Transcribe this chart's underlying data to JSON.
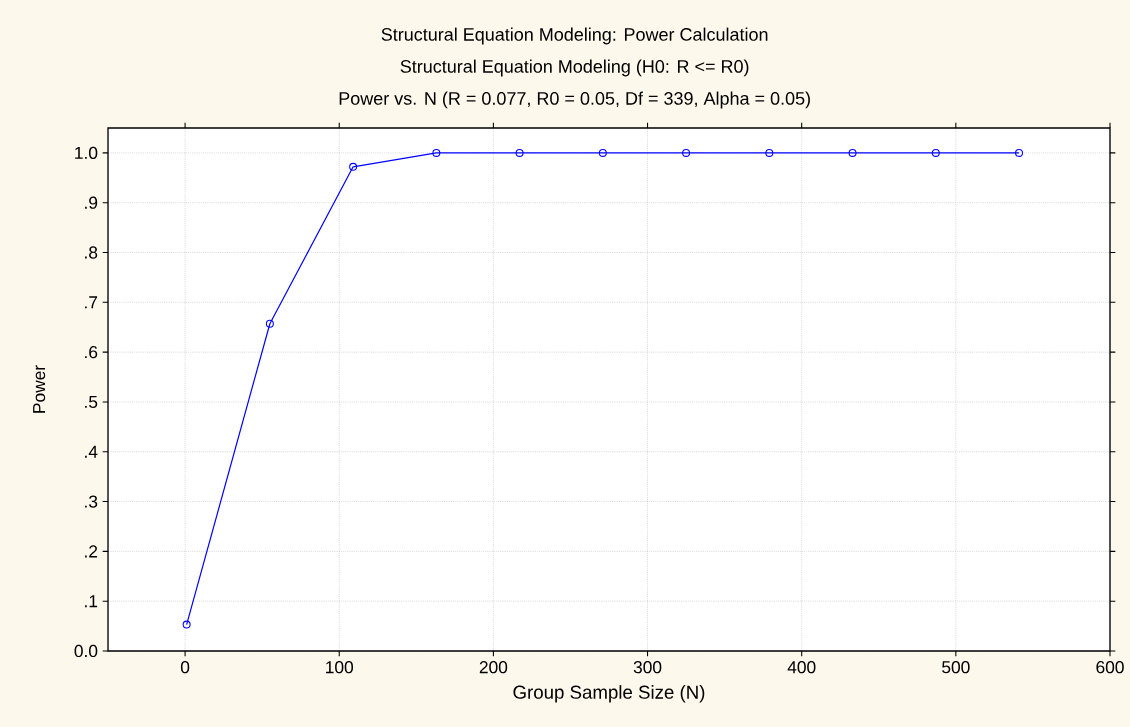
{
  "chart_data": {
    "type": "line",
    "title": "Structural Equation Modeling: Power Calculation",
    "subtitle": "Structural Equation Modeling (H0:  R <= R0)",
    "annotations": [
      "Power vs. N (R = 0.077,  R0 = 0.05, Df = 339, Alpha = 0.05)"
    ],
    "xlabel": "Group Sample Size (N)",
    "ylabel": "Power",
    "x": [
      1,
      55,
      109,
      163,
      217,
      271,
      325,
      379,
      433,
      487,
      541
    ],
    "series": [
      {
        "color": "#0000ff",
        "values": [
          0.053,
          0.657,
          0.972,
          1.0,
          1.0,
          1.0,
          1.0,
          1.0,
          1.0,
          1.0,
          1.0
        ]
      }
    ],
    "xlim": [
      -50,
      600
    ],
    "xticks": [
      0,
      100,
      200,
      300,
      400,
      500,
      600
    ],
    "ylim": [
      0,
      1.05
    ],
    "yticks": [
      {
        "value": 0,
        "label": "0.0"
      },
      {
        "value": 0.1,
        "label": ".1"
      },
      {
        "value": 0.2,
        "label": ".2"
      },
      {
        "value": 0.3,
        "label": ".3"
      },
      {
        "value": 0.4,
        "label": ".4"
      },
      {
        "value": 0.5,
        "label": ".5"
      },
      {
        "value": 0.6,
        "label": ".6"
      },
      {
        "value": 0.7,
        "label": ".7"
      },
      {
        "value": 0.8,
        "label": ".8"
      },
      {
        "value": 0.9,
        "label": ".9"
      },
      {
        "value": 1.0,
        "label": "1.0"
      }
    ],
    "grid": true,
    "marker": "circle",
    "line_style": "solid"
  }
}
